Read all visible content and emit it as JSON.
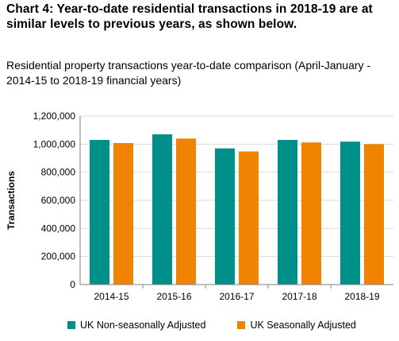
{
  "header": {
    "title": "Chart 4: Year-to-date residential transactions in 2018-19 are at similar levels to previous years, as shown below.",
    "subtitle": "Residential property transactions year-to-date comparison (April-January - 2014-15 to 2018-19 financial years)"
  },
  "chart_data": {
    "type": "bar",
    "title": "",
    "xlabel": "",
    "ylabel": "Transactions",
    "categories": [
      "2014-15",
      "2015-16",
      "2016-17",
      "2017-18",
      "2018-19"
    ],
    "series": [
      {
        "name": "UK Non-seasonally Adjusted",
        "color": "#00908A",
        "values": [
          1030000,
          1070000,
          970000,
          1030000,
          1018000
        ]
      },
      {
        "name": "UK Seasonally Adjusted",
        "color": "#F08300",
        "values": [
          1008000,
          1040000,
          948000,
          1012000,
          1000000
        ]
      }
    ],
    "ylim": [
      0,
      1200000
    ],
    "yticks": [
      0,
      200000,
      400000,
      600000,
      800000,
      1000000,
      1200000
    ],
    "ytick_labels": [
      "0",
      "200,000",
      "400,000",
      "600,000",
      "800,000",
      "1,000,000",
      "1,200,000"
    ],
    "grid": true,
    "legend_position": "bottom"
  }
}
